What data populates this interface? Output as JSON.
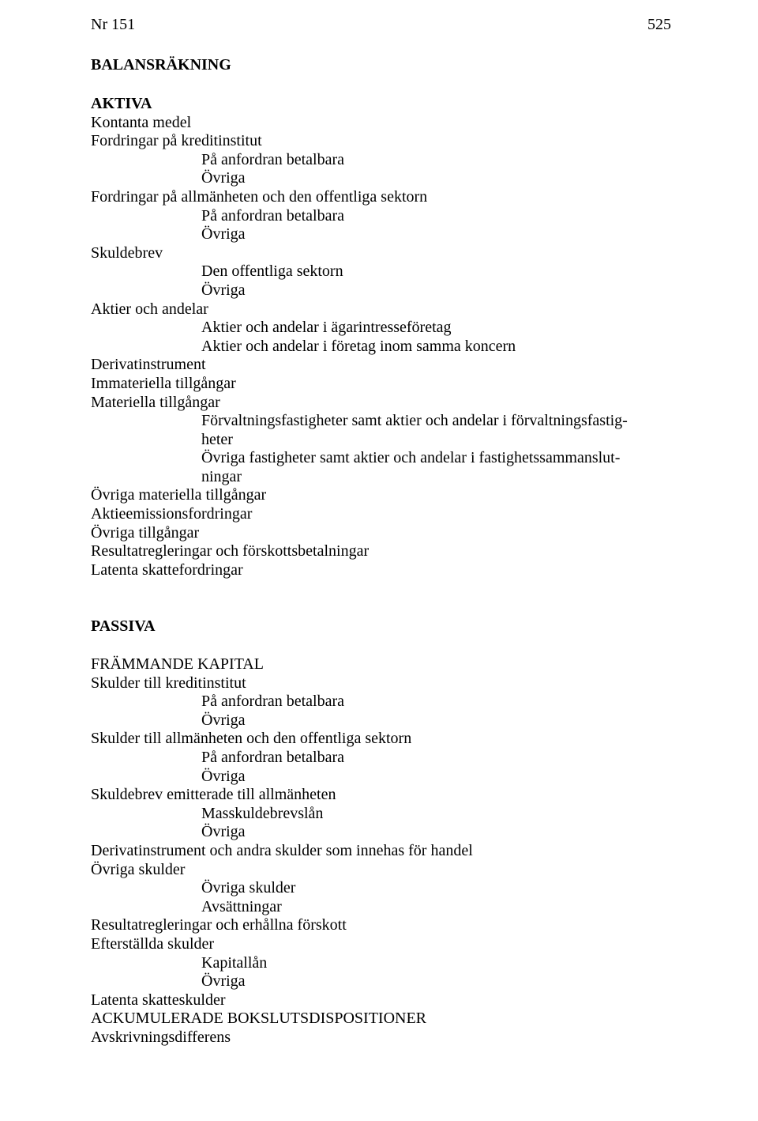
{
  "header": {
    "doc_number": "Nr 151",
    "page_number": "525"
  },
  "balansrakning_title": "BALANSRÄKNING",
  "aktiva": {
    "title": "AKTIVA",
    "lines": {
      "kontanta_medel": "Kontanta medel",
      "fordringar_kredit": "Fordringar på kreditinstitut",
      "pa_anfordran_1": "På anfordran betalbara",
      "ovriga_1": "Övriga",
      "fordringar_allman": "Fordringar på allmänheten och den offentliga sektorn",
      "pa_anfordran_2": "På anfordran betalbara",
      "ovriga_2": "Övriga",
      "skuldebrev": "Skuldebrev",
      "den_offentliga": "Den offentliga sektorn",
      "ovriga_3": "Övriga",
      "aktier_andelar": "Aktier och andelar",
      "aktier_agar": "Aktier och andelar i ägarintresseföretag",
      "aktier_koncern": "Aktier och andelar i företag inom samma koncern",
      "derivat": "Derivatinstrument",
      "immateriella": "Immateriella tillgångar",
      "materiella": "Materiella tillgångar",
      "forvaltnings_a": "Förvaltningsfastigheter samt aktier och andelar i förvaltningsfastig-",
      "forvaltnings_b": "heter",
      "ovriga_fast_a": "Övriga fastigheter samt aktier och andelar i fastighetssammanslut-",
      "ovriga_fast_b": "ningar",
      "ovriga_materiella": "Övriga materiella tillgångar",
      "aktieemissions": "Aktieemissionsfordringar",
      "ovriga_tillgangar": "Övriga tillgångar",
      "resultatreg": "Resultatregleringar och förskottsbetalningar",
      "latenta": "Latenta skattefordringar"
    }
  },
  "passiva": {
    "title": "PASSIVA",
    "frammande_title": "FRÄMMANDE KAPITAL",
    "lines": {
      "skulder_kredit": "Skulder till kreditinstitut",
      "pa_anfordran_3": "På anfordran betalbara",
      "ovriga_4": "Övriga",
      "skulder_allman": "Skulder till allmänheten och den offentliga sektorn",
      "pa_anfordran_4": "På anfordran betalbara",
      "ovriga_5": "Övriga",
      "skuldebrev_emit": "Skuldebrev emitterade till allmänheten",
      "masskulde": "Masskuldebrevslån",
      "ovriga_6": "Övriga",
      "derivat_handel": "Derivatinstrument och andra skulder som innehas för handel",
      "ovriga_skulder_1": "Övriga skulder",
      "ovriga_skulder_2": "Övriga skulder",
      "avsattningar": "Avsättningar",
      "resultatreg2": "Resultatregleringar och erhållna förskott",
      "efterstallda": "Efterställda skulder",
      "kapitallan": "Kapitallån",
      "ovriga_7": "Övriga",
      "latenta_sk": "Latenta skatteskulder",
      "ackumulerade": "ACKUMULERADE BOKSLUTSDISPOSITIONER",
      "avskrivnings": "Avskrivningsdifferens"
    }
  }
}
